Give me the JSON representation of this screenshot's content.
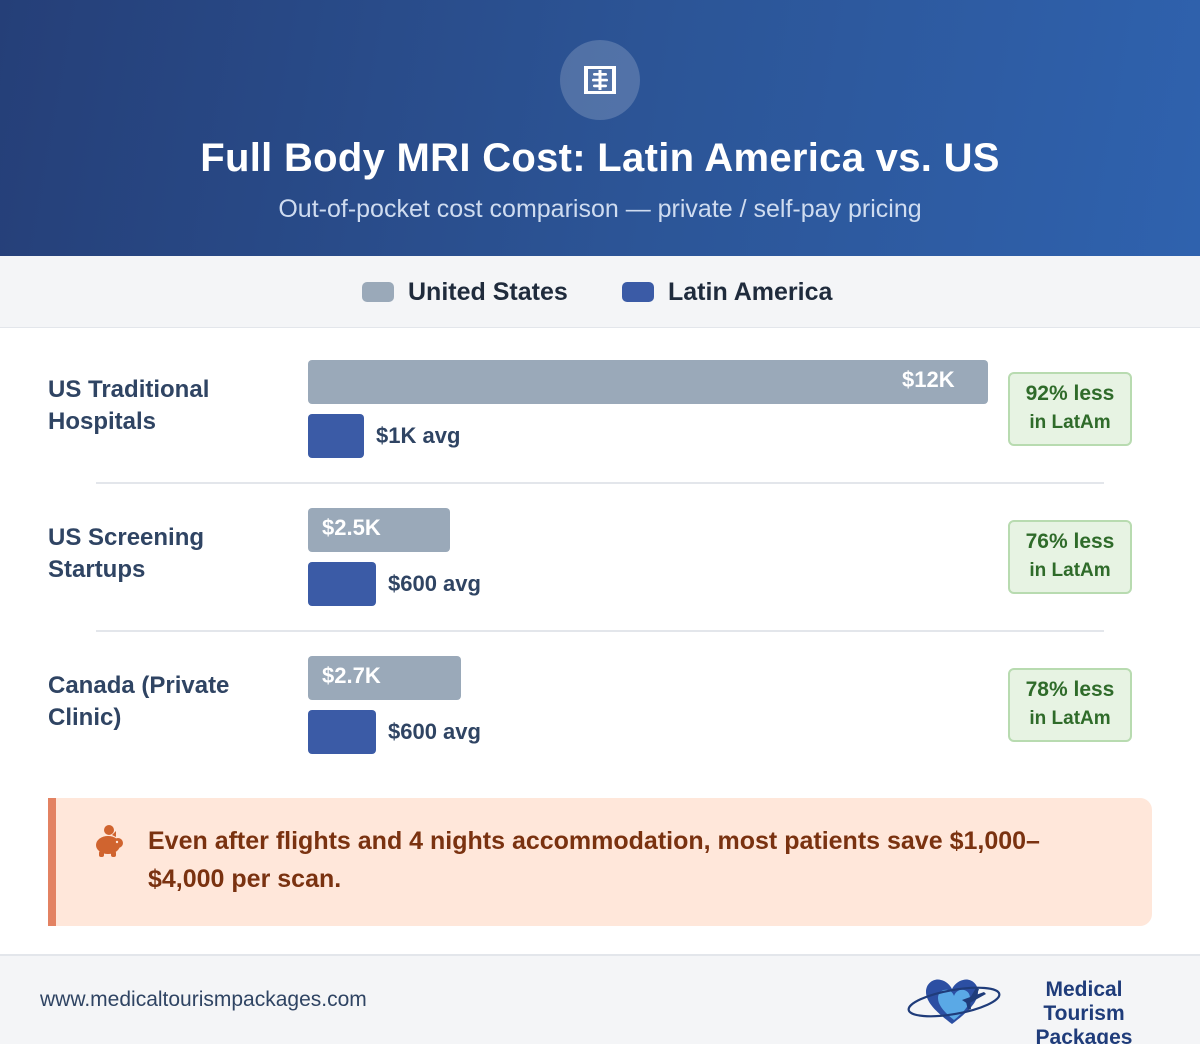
{
  "header": {
    "icon": "xray-film-icon",
    "title": "Full Body MRI Cost: Latin America vs. US",
    "subtitle": "Out-of-pocket cost comparison — private / self-pay pricing"
  },
  "colors": {
    "us_bar": "#9aa9b9",
    "latam_bar": "#3b5ba6",
    "badge_text": "#2f6b2a",
    "note_accent": "#e38262"
  },
  "chart_data": {
    "type": "bar",
    "orientation": "horizontal",
    "title": "Full Body MRI Cost: Latin America vs. US",
    "subtitle": "Out-of-pocket cost comparison — private / self-pay pricing",
    "legend": {
      "placement": "top",
      "entries": [
        "United States",
        "Latin America"
      ]
    },
    "categories": [
      "US Traditional Hospitals",
      "US Screening Startups",
      "Canada (Private Clinic)"
    ],
    "xlim": [
      0,
      12000
    ],
    "series": [
      {
        "name": "United States",
        "values": [
          12000,
          2500,
          2700
        ],
        "labels": [
          "$12K",
          "$2.5K",
          "$2.7K"
        ]
      },
      {
        "name": "Latin America",
        "values": [
          1000,
          600,
          600
        ],
        "labels": [
          "$1K avg",
          "$600 avg",
          "$600 avg"
        ]
      }
    ],
    "annotations": [
      {
        "line1": "92% less",
        "line2": "in LatAm"
      },
      {
        "line1": "76% less",
        "line2": "in LatAm"
      },
      {
        "line1": "78% less",
        "line2": "in LatAm"
      }
    ]
  },
  "note": {
    "icon": "piggy-bank-icon",
    "text": "Even after flights and 4 nights accommodation, most patients save $1,000–$4,000 per scan."
  },
  "footer": {
    "url": "www.medicaltourismpackages.com",
    "logo_line1": "Medical Tourism",
    "logo_line2": "Packages"
  }
}
